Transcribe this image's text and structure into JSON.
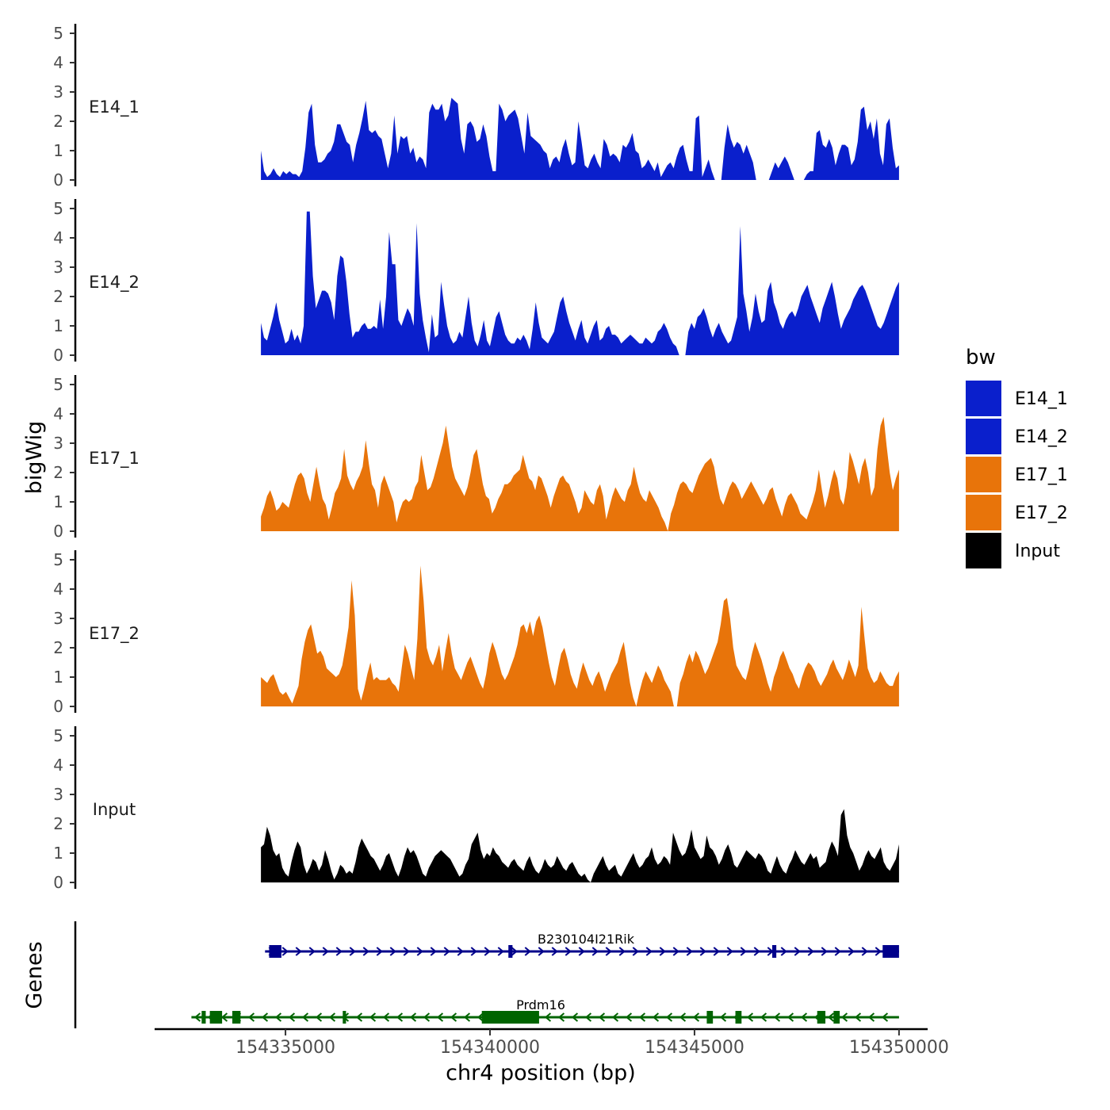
{
  "chart_data": {
    "type": "area",
    "title": "",
    "xlabel": "chr4 position (bp)",
    "ylabel": "bigWig",
    "genes_label": "Genes",
    "xlim": [
      154331800,
      154350700
    ],
    "ylim": [
      0,
      5
    ],
    "x_ticks": [
      154335000,
      154340000,
      154345000,
      154350000
    ],
    "x_tick_labels": [
      "154335000",
      "154340000",
      "154345000",
      "154350000"
    ],
    "y_ticks": [
      0,
      1,
      2,
      3,
      4,
      5
    ],
    "y_tick_labels": [
      "0",
      "1",
      "2",
      "3",
      "4",
      "5"
    ],
    "region": [
      154334400,
      154350000
    ],
    "legend": {
      "title": "bw",
      "position": "right",
      "entries": [
        {
          "name": "E14_1",
          "color": "#0a1fcc"
        },
        {
          "name": "E14_2",
          "color": "#0a1fcc"
        },
        {
          "name": "E17_1",
          "color": "#e8740a"
        },
        {
          "name": "E17_2",
          "color": "#e8740a"
        },
        {
          "name": "Input",
          "color": "#000000"
        }
      ]
    },
    "series": [
      {
        "name": "E14_1",
        "label": "E14_1",
        "color": "#0a1fcc",
        "values": [
          1.0,
          0.3,
          0.1,
          0.2,
          0.4,
          0.2,
          0.1,
          0.3,
          0.2,
          0.3,
          0.2,
          0.2,
          0.1,
          0.3,
          1.1,
          2.3,
          2.6,
          1.2,
          0.6,
          0.6,
          0.7,
          0.9,
          1.0,
          1.3,
          1.9,
          1.9,
          1.6,
          1.3,
          1.2,
          0.6,
          1.2,
          1.6,
          2.1,
          2.7,
          1.7,
          1.6,
          1.7,
          1.5,
          1.4,
          0.9,
          0.4,
          0.9,
          2.2,
          0.9,
          1.5,
          1.4,
          1.5,
          0.9,
          1.1,
          0.6,
          0.8,
          0.7,
          0.4,
          2.3,
          2.6,
          2.4,
          2.4,
          2.6,
          2.0,
          2.2,
          2.8,
          2.7,
          2.6,
          1.4,
          0.9,
          1.9,
          2.0,
          1.8,
          1.3,
          1.4,
          1.9,
          1.5,
          0.8,
          0.3,
          0.3,
          2.6,
          2.4,
          2.0,
          2.2,
          2.3,
          2.4,
          2.1,
          1.5,
          0.9,
          2.3,
          1.5,
          1.4,
          1.3,
          1.2,
          1.0,
          0.9,
          0.4,
          0.7,
          0.8,
          0.6,
          1.1,
          1.4,
          0.9,
          0.5,
          0.6,
          2.0,
          1.3,
          0.5,
          0.4,
          0.7,
          0.9,
          0.6,
          0.4,
          1.4,
          1.2,
          0.8,
          0.9,
          0.8,
          0.6,
          1.2,
          1.1,
          1.3,
          1.6,
          1.0,
          0.9,
          0.4,
          0.5,
          0.7,
          0.5,
          0.3,
          0.6,
          0.1,
          0.3,
          0.5,
          0.6,
          0.4,
          0.8,
          1.1,
          1.2,
          0.7,
          0.3,
          0.3,
          2.1,
          2.2,
          0.1,
          0.4,
          0.7,
          0.3,
          0.0,
          0.0,
          0.0,
          1.1,
          1.9,
          1.4,
          1.1,
          1.3,
          1.2,
          0.9,
          1.2,
          0.9,
          0.6,
          0.0,
          0.0,
          0.0,
          0.0,
          0.0,
          0.3,
          0.6,
          0.4,
          0.6,
          0.8,
          0.6,
          0.3,
          0.0,
          0.0,
          0.0,
          0.0,
          0.2,
          0.3,
          0.3,
          1.6,
          1.7,
          1.2,
          1.1,
          1.4,
          1.1,
          0.5,
          0.9,
          1.2,
          1.2,
          1.1,
          0.5,
          0.7,
          1.3,
          2.4,
          2.5,
          1.7,
          2.0,
          1.4,
          2.1,
          0.9,
          0.5,
          1.9,
          2.1,
          1.1,
          0.4,
          0.5
        ]
      },
      {
        "name": "E14_2",
        "label": "E14_2",
        "color": "#0a1fcc",
        "values": [
          1.1,
          0.6,
          0.5,
          0.9,
          1.3,
          1.8,
          1.2,
          0.8,
          0.4,
          0.5,
          0.9,
          0.5,
          0.7,
          0.4,
          1.0,
          4.9,
          4.9,
          2.7,
          1.6,
          1.9,
          2.2,
          2.2,
          2.1,
          1.8,
          1.2,
          2.7,
          3.4,
          3.3,
          2.5,
          1.4,
          0.6,
          0.8,
          0.8,
          1.0,
          1.1,
          0.9,
          0.9,
          1.0,
          0.9,
          1.9,
          0.9,
          2.0,
          4.2,
          3.1,
          3.1,
          1.2,
          1.0,
          1.3,
          1.6,
          1.4,
          1.0,
          4.5,
          2.1,
          1.2,
          0.6,
          0.1,
          1.4,
          0.6,
          0.7,
          2.5,
          1.7,
          1.0,
          0.6,
          0.4,
          0.5,
          0.8,
          0.6,
          1.3,
          2.0,
          1.1,
          0.5,
          0.3,
          0.7,
          1.2,
          0.5,
          0.3,
          0.8,
          1.3,
          1.5,
          1.1,
          0.7,
          0.5,
          0.4,
          0.4,
          0.6,
          0.5,
          0.7,
          0.5,
          0.2,
          0.9,
          1.8,
          1.1,
          0.6,
          0.5,
          0.4,
          0.6,
          0.8,
          1.3,
          1.8,
          2.0,
          1.5,
          1.1,
          0.8,
          0.5,
          0.9,
          1.2,
          0.6,
          0.4,
          0.7,
          1.0,
          1.2,
          0.5,
          0.6,
          0.9,
          1.0,
          0.7,
          0.7,
          0.6,
          0.4,
          0.5,
          0.6,
          0.7,
          0.6,
          0.5,
          0.4,
          0.4,
          0.6,
          0.5,
          0.4,
          0.5,
          0.8,
          0.9,
          1.1,
          0.9,
          0.6,
          0.4,
          0.3,
          0.0,
          0.0,
          0.0,
          0.8,
          1.1,
          0.9,
          1.3,
          1.4,
          1.6,
          1.3,
          0.9,
          0.6,
          0.9,
          1.1,
          0.8,
          0.6,
          0.4,
          0.5,
          0.9,
          1.3,
          4.4,
          2.1,
          1.5,
          0.8,
          1.3,
          2.1,
          1.5,
          1.1,
          1.2,
          2.2,
          2.5,
          1.8,
          1.5,
          1.1,
          0.9,
          1.2,
          1.4,
          1.5,
          1.3,
          1.6,
          2.0,
          2.2,
          2.4,
          2.0,
          1.7,
          1.4,
          1.1,
          1.6,
          1.9,
          2.2,
          2.5,
          2.0,
          1.4,
          0.9,
          1.2,
          1.4,
          1.6,
          1.9,
          2.1,
          2.3,
          2.4,
          2.2,
          1.9,
          1.6,
          1.3,
          1.0,
          0.9,
          1.1,
          1.4,
          1.7,
          2.0,
          2.3,
          2.5
        ]
      },
      {
        "name": "E17_1",
        "label": "E17_1",
        "color": "#e8740a",
        "values": [
          0.5,
          0.8,
          1.2,
          1.4,
          1.1,
          0.7,
          0.8,
          1.0,
          0.9,
          0.8,
          1.2,
          1.6,
          1.9,
          2.0,
          1.8,
          1.3,
          1.0,
          1.6,
          2.2,
          1.6,
          1.1,
          0.9,
          0.4,
          0.8,
          1.3,
          1.5,
          1.8,
          2.8,
          1.9,
          1.6,
          1.4,
          1.7,
          1.9,
          2.2,
          3.1,
          2.3,
          1.6,
          1.4,
          0.8,
          1.6,
          1.9,
          1.6,
          1.3,
          1.0,
          0.3,
          0.7,
          1.0,
          1.1,
          1.0,
          1.1,
          1.5,
          1.7,
          2.6,
          2.0,
          1.4,
          1.5,
          1.8,
          2.2,
          2.6,
          3.0,
          3.6,
          2.9,
          2.2,
          1.8,
          1.6,
          1.4,
          1.2,
          1.5,
          2.0,
          2.6,
          2.8,
          2.2,
          1.6,
          1.2,
          1.1,
          0.6,
          0.8,
          1.1,
          1.3,
          1.6,
          1.6,
          1.7,
          1.9,
          2.0,
          2.1,
          2.6,
          2.2,
          1.8,
          1.7,
          1.4,
          1.9,
          1.8,
          1.5,
          1.2,
          0.8,
          1.2,
          1.5,
          1.8,
          1.9,
          1.7,
          1.6,
          1.3,
          1.0,
          0.6,
          0.8,
          1.4,
          1.2,
          1.0,
          0.9,
          1.4,
          1.6,
          1.2,
          0.4,
          0.8,
          1.2,
          1.5,
          1.3,
          1.1,
          1.0,
          1.4,
          1.6,
          2.2,
          1.7,
          1.3,
          1.1,
          1.0,
          1.4,
          1.2,
          1.0,
          0.8,
          0.5,
          0.3,
          0.0,
          0.6,
          0.9,
          1.3,
          1.6,
          1.7,
          1.6,
          1.4,
          1.3,
          1.6,
          1.9,
          2.1,
          2.3,
          2.4,
          2.5,
          2.2,
          1.6,
          1.1,
          0.9,
          1.2,
          1.5,
          1.7,
          1.6,
          1.4,
          1.1,
          1.3,
          1.5,
          1.7,
          1.5,
          1.3,
          1.1,
          0.9,
          1.1,
          1.4,
          1.5,
          1.1,
          0.8,
          0.5,
          0.9,
          1.2,
          1.3,
          1.1,
          0.9,
          0.6,
          0.5,
          0.4,
          0.7,
          1.0,
          1.4,
          2.1,
          1.4,
          0.8,
          1.2,
          1.7,
          2.1,
          1.8,
          1.1,
          0.9,
          1.5,
          2.7,
          2.4,
          2.0,
          1.6,
          2.2,
          2.5,
          2.0,
          1.2,
          1.5,
          2.8,
          3.6,
          3.9,
          2.9,
          2.0,
          1.4,
          1.8,
          2.1
        ]
      },
      {
        "name": "E17_2",
        "label": "E17_2",
        "color": "#e8740a",
        "values": [
          1.0,
          0.9,
          0.8,
          1.0,
          1.1,
          0.8,
          0.5,
          0.4,
          0.5,
          0.3,
          0.1,
          0.4,
          0.7,
          1.6,
          2.2,
          2.6,
          2.8,
          2.3,
          1.8,
          1.9,
          1.7,
          1.3,
          1.2,
          1.1,
          1.0,
          1.1,
          1.4,
          2.0,
          2.7,
          4.3,
          3.1,
          0.6,
          0.2,
          0.6,
          1.1,
          1.5,
          0.9,
          1.0,
          0.9,
          0.9,
          0.9,
          1.0,
          0.8,
          0.7,
          0.5,
          1.3,
          2.1,
          1.8,
          1.3,
          0.9,
          2.3,
          4.8,
          3.6,
          2.0,
          1.6,
          1.4,
          1.7,
          2.1,
          1.2,
          1.9,
          2.5,
          1.8,
          1.3,
          1.1,
          0.9,
          1.2,
          1.5,
          1.7,
          1.4,
          1.1,
          0.8,
          0.6,
          1.1,
          1.8,
          2.2,
          1.9,
          1.5,
          1.1,
          0.9,
          1.1,
          1.4,
          1.7,
          2.1,
          2.7,
          2.8,
          2.5,
          2.9,
          2.4,
          2.9,
          3.1,
          2.7,
          2.1,
          1.5,
          1.0,
          0.7,
          1.3,
          1.8,
          2.0,
          1.6,
          1.1,
          0.8,
          0.6,
          1.1,
          1.5,
          1.2,
          0.9,
          0.7,
          1.0,
          1.2,
          0.9,
          0.5,
          0.8,
          1.1,
          1.3,
          1.5,
          1.9,
          2.2,
          1.5,
          0.8,
          0.3,
          0.0,
          0.5,
          0.9,
          1.2,
          1.0,
          0.8,
          1.1,
          1.4,
          1.2,
          0.9,
          0.7,
          0.5,
          0.0,
          0.0,
          0.8,
          1.1,
          1.5,
          1.8,
          1.5,
          1.9,
          1.7,
          1.4,
          1.1,
          1.3,
          1.6,
          1.9,
          2.2,
          2.8,
          3.6,
          3.7,
          3.0,
          2.0,
          1.4,
          1.2,
          1.0,
          0.9,
          1.3,
          1.8,
          2.2,
          1.9,
          1.6,
          1.2,
          0.8,
          0.5,
          1.0,
          1.3,
          1.7,
          1.9,
          1.6,
          1.3,
          1.1,
          0.8,
          0.6,
          1.0,
          1.3,
          1.5,
          1.4,
          1.2,
          0.9,
          0.7,
          0.9,
          1.1,
          1.4,
          1.6,
          1.3,
          1.1,
          0.9,
          1.2,
          1.6,
          1.3,
          1.0,
          1.4,
          3.4,
          2.3,
          1.3,
          1.0,
          0.8,
          0.9,
          1.2,
          1.0,
          0.8,
          0.7,
          0.7,
          1.0,
          1.2
        ]
      },
      {
        "name": "Input",
        "label": "Input",
        "color": "#000000",
        "values": [
          1.2,
          1.3,
          1.9,
          1.6,
          1.1,
          0.9,
          1.0,
          0.5,
          0.3,
          0.2,
          0.7,
          1.1,
          1.4,
          1.2,
          0.6,
          0.3,
          0.5,
          0.8,
          0.7,
          0.4,
          0.6,
          1.1,
          0.8,
          0.4,
          0.1,
          0.3,
          0.6,
          0.5,
          0.3,
          0.4,
          0.3,
          0.7,
          1.2,
          1.5,
          1.3,
          1.1,
          0.9,
          0.8,
          0.6,
          0.4,
          0.6,
          0.9,
          1.0,
          0.7,
          0.4,
          0.2,
          0.5,
          0.9,
          1.2,
          1.0,
          1.1,
          0.9,
          0.6,
          0.3,
          0.2,
          0.5,
          0.7,
          0.9,
          1.0,
          1.1,
          1.0,
          0.9,
          0.8,
          0.6,
          0.4,
          0.2,
          0.3,
          0.6,
          0.8,
          1.3,
          1.5,
          1.7,
          1.1,
          0.8,
          1.0,
          0.9,
          1.2,
          1.0,
          0.9,
          0.7,
          0.6,
          0.5,
          0.7,
          0.8,
          0.6,
          0.5,
          0.4,
          0.7,
          0.9,
          0.6,
          0.4,
          0.3,
          0.5,
          0.8,
          0.6,
          0.5,
          0.6,
          0.9,
          0.7,
          0.5,
          0.4,
          0.6,
          0.7,
          0.5,
          0.3,
          0.2,
          0.3,
          0.1,
          0.0,
          0.3,
          0.5,
          0.7,
          0.9,
          0.6,
          0.4,
          0.5,
          0.6,
          0.3,
          0.2,
          0.4,
          0.6,
          0.8,
          1.0,
          0.7,
          0.5,
          0.6,
          0.8,
          0.9,
          1.2,
          0.8,
          0.6,
          0.7,
          0.9,
          0.8,
          0.6,
          1.7,
          1.4,
          1.1,
          0.9,
          1.0,
          1.3,
          1.8,
          1.2,
          1.0,
          0.8,
          0.9,
          1.6,
          1.2,
          1.1,
          0.9,
          0.6,
          0.8,
          1.1,
          1.3,
          1.0,
          0.6,
          0.5,
          0.7,
          0.9,
          1.1,
          1.0,
          0.9,
          0.8,
          1.0,
          0.9,
          0.7,
          0.4,
          0.3,
          0.6,
          0.9,
          0.6,
          0.4,
          0.3,
          0.6,
          0.8,
          1.1,
          0.9,
          0.7,
          0.6,
          0.8,
          1.0,
          0.8,
          0.9,
          0.5,
          0.6,
          0.7,
          1.1,
          1.4,
          1.2,
          0.9,
          2.3,
          2.5,
          1.6,
          1.2,
          1.0,
          0.7,
          0.4,
          0.6,
          0.9,
          1.1,
          0.9,
          0.8,
          1.0,
          1.2,
          0.7,
          0.5,
          0.4,
          0.6,
          0.8,
          1.3
        ]
      }
    ],
    "genes": [
      {
        "name": "B230104I21Rik",
        "strand": "+",
        "color": "#00008b",
        "start": 154334500,
        "end": 154350000,
        "exons": [
          [
            154334600,
            154334900
          ],
          [
            154340450,
            154340550
          ],
          [
            154346900,
            154347000
          ],
          [
            154349600,
            154350000
          ]
        ]
      },
      {
        "name": "Prdm16",
        "strand": "-",
        "color": "#006400",
        "start": 154332700,
        "end": 154350000,
        "exons": [
          [
            154332950,
            154333050
          ],
          [
            154333150,
            154333450
          ],
          [
            154333700,
            154333900
          ],
          [
            154336400,
            154336480
          ],
          [
            154339800,
            154341200
          ],
          [
            154345300,
            154345450
          ],
          [
            154346000,
            154346150
          ],
          [
            154348000,
            154348200
          ],
          [
            154348400,
            154348550
          ]
        ]
      }
    ]
  }
}
